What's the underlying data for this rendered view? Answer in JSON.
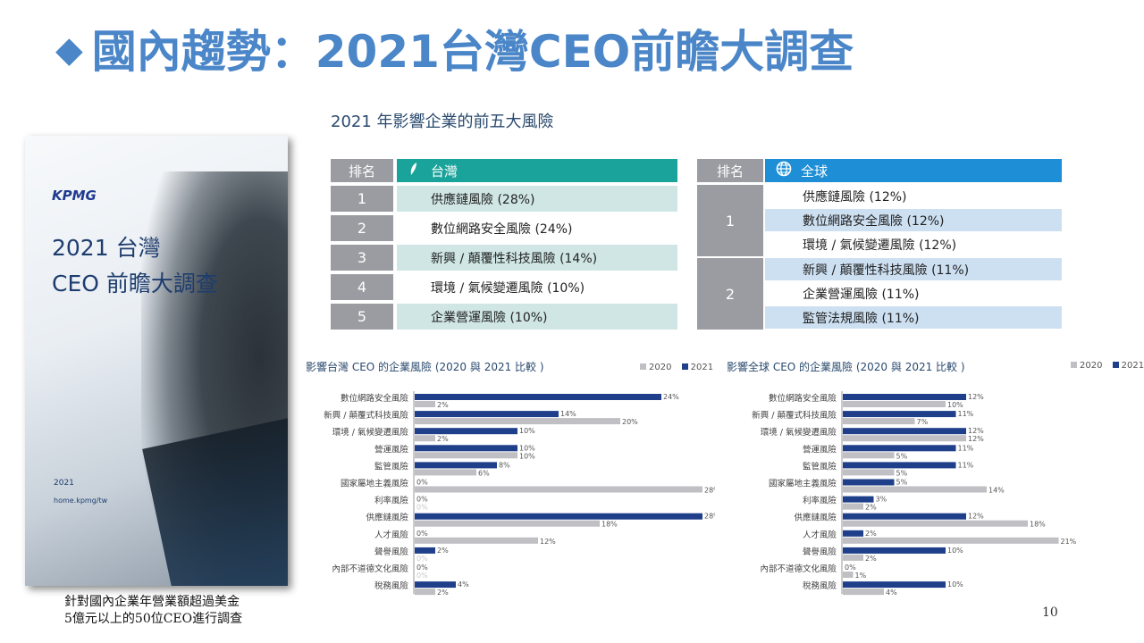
{
  "title": {
    "diamond": "◆",
    "text": "國內趨勢：2021台灣CEO前瞻大調查"
  },
  "section_title": "2021 年影響企業的前五大風險",
  "cover": {
    "logo": "KPMG",
    "title_line1": "2021 台灣",
    "title_line2": "CEO 前瞻大調查",
    "year": "2021",
    "url": "home.kpmg/tw"
  },
  "footnote": {
    "line1": "針對國內企業年營業額超過美金",
    "line2": "5億元以上的50位CEO進行調查"
  },
  "page_number": "10",
  "taiwan_table": {
    "rank_header": "排名",
    "region_header": "台灣",
    "icon": "leaf-icon",
    "rows": [
      {
        "rank": "1",
        "risk": "供應鏈風險 (28%)"
      },
      {
        "rank": "2",
        "risk": "數位網路安全風險 (24%)"
      },
      {
        "rank": "3",
        "risk": "新興 / 顛覆性科技風險 (14%)"
      },
      {
        "rank": "4",
        "risk": "環境 / 氣候變遷風險 (10%)"
      },
      {
        "rank": "5",
        "risk": "企業營運風險 (10%)"
      }
    ]
  },
  "global_table": {
    "rank_header": "排名",
    "region_header": "全球",
    "icon": "globe-icon",
    "groups": [
      {
        "rank": "1",
        "risks": [
          "供應鏈風險 (12%)",
          "數位網路安全風險 (12%)",
          "環境 / 氣候變遷風險 (12%)"
        ]
      },
      {
        "rank": "2",
        "risks": [
          "新興 / 顛覆性科技風險 (11%)",
          "企業營運風險 (11%)",
          "監管法規風險 (11%)"
        ]
      }
    ]
  },
  "colors": {
    "y2020": "#bfbfc4",
    "y2021": "#1f3f8a",
    "taiwan_header": "#1aa39a",
    "global_header": "#1e8fd6",
    "rank_gray": "#9a9ca1",
    "title_blue": "#4a86c8"
  },
  "chart_data": [
    {
      "type": "bar",
      "orientation": "horizontal",
      "title": "影響台灣 CEO 的企業風險 (2020 與 2021 比較 )",
      "legend_position": "top-right",
      "categories": [
        "數位網路安全風險",
        "新興 / 顛覆式科技風險",
        "環境 / 氣候變遷風險",
        "營運風險",
        "監管風險",
        "國家屬地主義風險",
        "利率風險",
        "供應鏈風險",
        "人才風險",
        "聲譽風險",
        "內部不道德文化風險",
        "稅務風險"
      ],
      "series": [
        {
          "name": "2021",
          "values": [
            24,
            14,
            10,
            10,
            8,
            0,
            0,
            28,
            0,
            2,
            0,
            4
          ]
        },
        {
          "name": "2020",
          "values": [
            2,
            20,
            2,
            10,
            6,
            28,
            0,
            18,
            12,
            0,
            0,
            2
          ]
        }
      ],
      "xlim": [
        0,
        28
      ]
    },
    {
      "type": "bar",
      "orientation": "horizontal",
      "title": "影響全球 CEO 的企業風險 (2020 與 2021 比較 )",
      "legend_position": "top-right",
      "categories": [
        "數位網路安全風險",
        "新興 / 顛覆式科技風險",
        "環境 / 氣候變遷風險",
        "營運風險",
        "監管風險",
        "國家屬地主義風險",
        "利率風險",
        "供應鏈風險",
        "人才風險",
        "聲譽風險",
        "內部不道德文化風險",
        "稅務風險"
      ],
      "series": [
        {
          "name": "2021",
          "values": [
            12,
            11,
            12,
            11,
            11,
            5,
            3,
            12,
            2,
            10,
            0,
            10
          ]
        },
        {
          "name": "2020",
          "values": [
            10,
            7,
            12,
            5,
            5,
            14,
            2,
            18,
            21,
            2,
            1,
            4
          ]
        }
      ],
      "xlim": [
        0,
        21
      ]
    }
  ]
}
